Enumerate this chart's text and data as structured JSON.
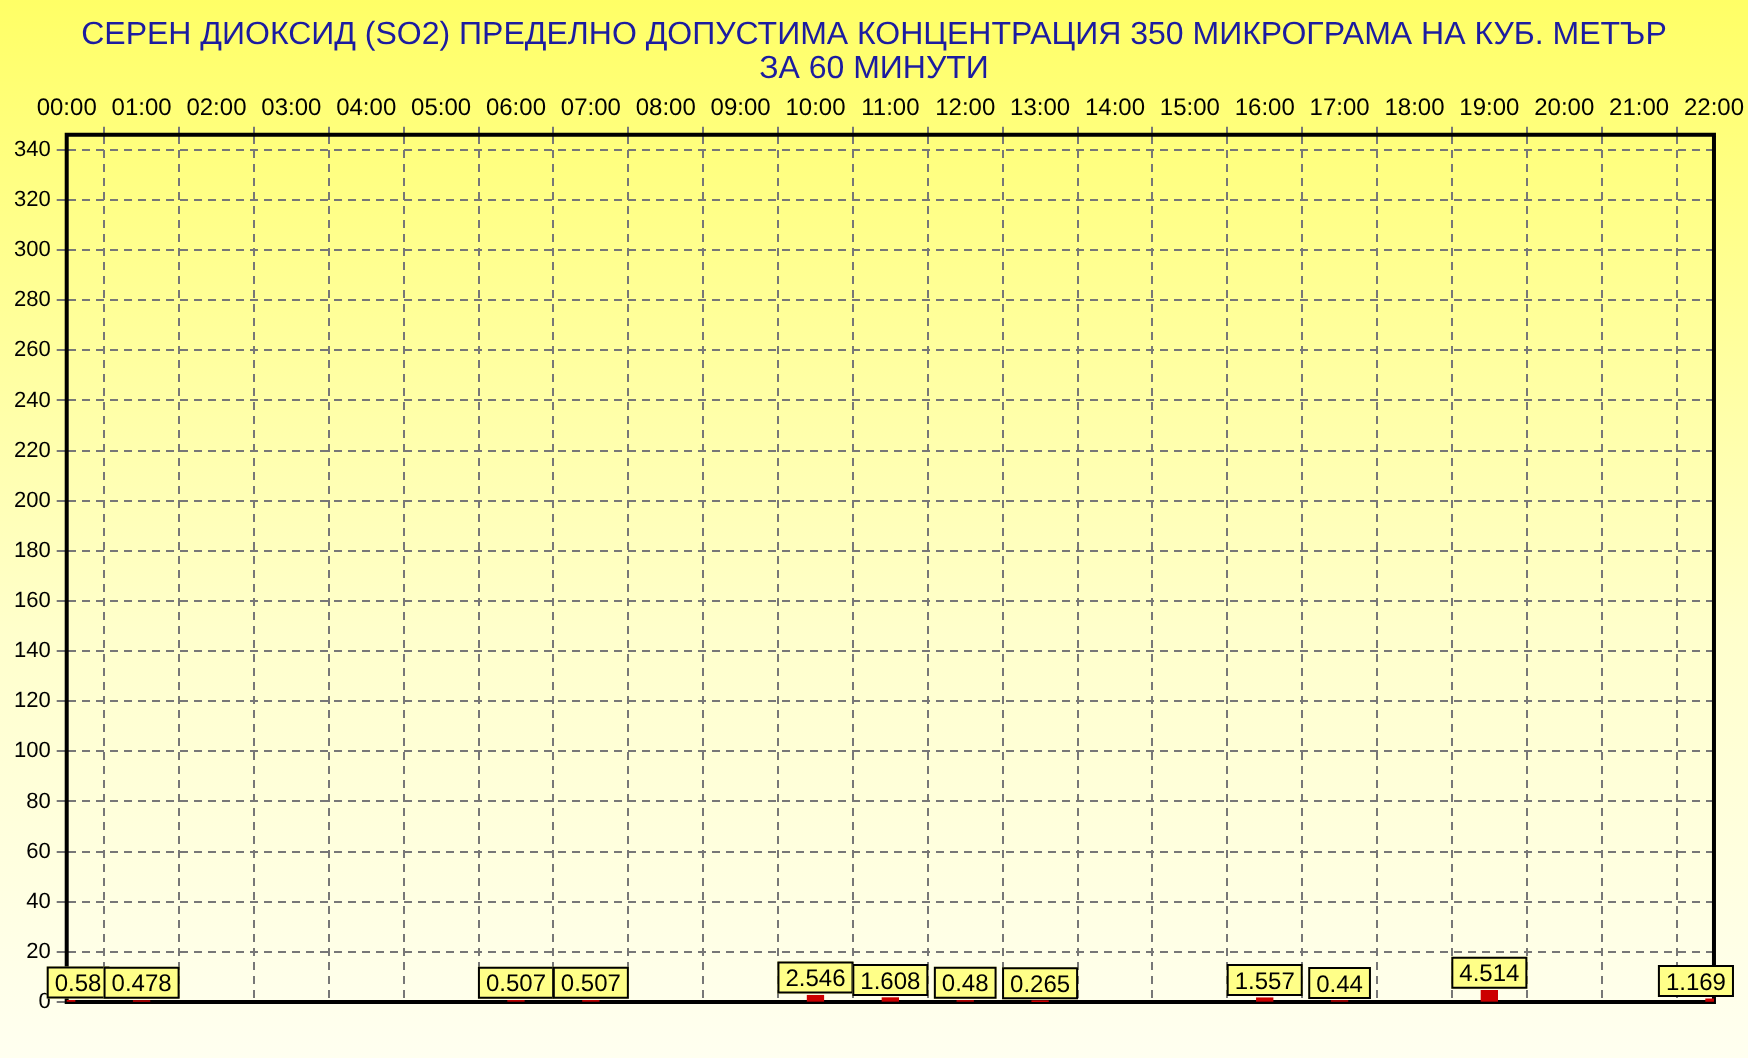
{
  "chart_data": {
    "type": "bar",
    "title": "СЕРЕН ДИОКСИД  (SO2)  ПРЕДЕЛНО ДОПУСТИМА КОНЦЕНТРАЦИЯ 350 МИКРОГРАМА  НА КУБ. МЕТЪР ЗА 60 МИНУТИ",
    "x": [
      0,
      1,
      6,
      7,
      10,
      11,
      12,
      13,
      16,
      17,
      19,
      22
    ],
    "values": [
      0.58,
      0.478,
      0.507,
      0.507,
      2.546,
      1.608,
      0.48,
      0.265,
      1.557,
      0.44,
      4.514,
      1.169
    ],
    "color": "#cc0000",
    "data_labels": true,
    "xlim": [
      0,
      22
    ],
    "xticks": [
      {
        "value": 0,
        "label": "00:00"
      },
      {
        "value": 1,
        "label": "01:00"
      },
      {
        "value": 2,
        "label": "02:00"
      },
      {
        "value": 3,
        "label": "03:00"
      },
      {
        "value": 4,
        "label": "04:00"
      },
      {
        "value": 5,
        "label": "05:00"
      },
      {
        "value": 6,
        "label": "06:00"
      },
      {
        "value": 7,
        "label": "07:00"
      },
      {
        "value": 8,
        "label": "08:00"
      },
      {
        "value": 9,
        "label": "09:00"
      },
      {
        "value": 10,
        "label": "10:00"
      },
      {
        "value": 11,
        "label": "11:00"
      },
      {
        "value": 12,
        "label": "12:00"
      },
      {
        "value": 13,
        "label": "13:00"
      },
      {
        "value": 14,
        "label": "14:00"
      },
      {
        "value": 15,
        "label": "15:00"
      },
      {
        "value": 16,
        "label": "16:00"
      },
      {
        "value": 17,
        "label": "17:00"
      },
      {
        "value": 18,
        "label": "18:00"
      },
      {
        "value": 19,
        "label": "19:00"
      },
      {
        "value": 20,
        "label": "20:00"
      },
      {
        "value": 21,
        "label": "21:00"
      },
      {
        "value": 22,
        "label": "22:00"
      }
    ],
    "ylim": [
      0,
      346
    ],
    "yticks": [
      0,
      20,
      40,
      60,
      80,
      100,
      120,
      140,
      160,
      180,
      200,
      220,
      240,
      260,
      280,
      300,
      320,
      340
    ],
    "grid": true,
    "legend": false
  }
}
